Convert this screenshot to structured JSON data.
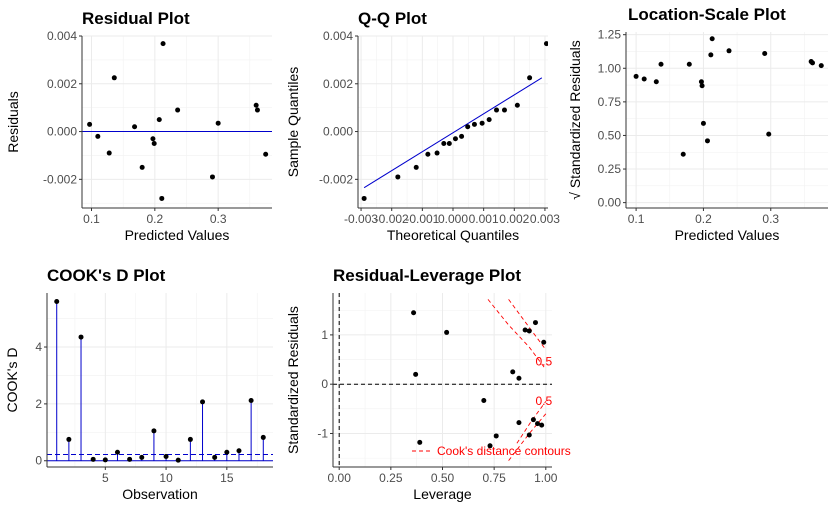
{
  "chart_data": [
    {
      "type": "scatter",
      "title": "Residual Plot",
      "xlabel": "Predicted Values",
      "ylabel": "Residuals",
      "xlim": [
        0.085,
        0.385
      ],
      "ylim": [
        -0.0032,
        0.004
      ],
      "xticks": [
        0.1,
        0.2,
        0.3
      ],
      "xtick_labels": [
        "0.1",
        "0.2",
        "0.3"
      ],
      "yticks": [
        -0.002,
        0.0,
        0.002,
        0.004
      ],
      "ytick_labels": [
        "-0.002",
        "0.000",
        "0.002",
        "0.004"
      ],
      "grid": true,
      "reference_line": {
        "type": "horizontal",
        "y": 0.0,
        "color": "#0000cc"
      },
      "points": [
        {
          "x": 0.097,
          "y": 0.0003
        },
        {
          "x": 0.11,
          "y": -0.0002
        },
        {
          "x": 0.128,
          "y": -0.0009
        },
        {
          "x": 0.136,
          "y": 0.00225
        },
        {
          "x": 0.168,
          "y": 0.0002
        },
        {
          "x": 0.18,
          "y": -0.0015
        },
        {
          "x": 0.197,
          "y": -0.0003
        },
        {
          "x": 0.199,
          "y": -0.0005
        },
        {
          "x": 0.207,
          "y": 0.0005
        },
        {
          "x": 0.211,
          "y": -0.0028
        },
        {
          "x": 0.213,
          "y": 0.00368
        },
        {
          "x": 0.236,
          "y": 0.0009
        },
        {
          "x": 0.291,
          "y": -0.0019
        },
        {
          "x": 0.3,
          "y": 0.00035
        },
        {
          "x": 0.36,
          "y": 0.0011
        },
        {
          "x": 0.362,
          "y": 0.0009
        },
        {
          "x": 0.375,
          "y": -0.00095
        }
      ]
    },
    {
      "type": "scatter",
      "title": "Q-Q Plot",
      "xlabel": "Theoretical Quantiles",
      "ylabel": "Sample Quantiles",
      "xlim": [
        -0.0031,
        0.0031
      ],
      "ylim": [
        -0.0032,
        0.004
      ],
      "xticks": [
        -0.003,
        -0.002,
        -0.001,
        0.0,
        0.001,
        0.002,
        0.003
      ],
      "xtick_labels": [
        "-0.003",
        "-0.002",
        "-0.001",
        "0.000",
        "0.001",
        "0.002",
        "0.003"
      ],
      "yticks": [
        -0.002,
        0.0,
        0.002,
        0.004
      ],
      "ytick_labels": [
        "-0.002",
        "0.000",
        "0.002",
        "0.004"
      ],
      "grid": true,
      "reference_line": {
        "type": "segment",
        "x1": -0.0029,
        "y1": -0.00235,
        "x2": 0.0029,
        "y2": 0.00225,
        "color": "#0000cc"
      },
      "points": [
        {
          "x": -0.0029,
          "y": -0.0028
        },
        {
          "x": -0.0018,
          "y": -0.0019
        },
        {
          "x": -0.0012,
          "y": -0.0015
        },
        {
          "x": -0.00082,
          "y": -0.00095
        },
        {
          "x": -0.00052,
          "y": -0.0009
        },
        {
          "x": -0.0003,
          "y": -0.0005
        },
        {
          "x": -0.00012,
          "y": -0.0005
        },
        {
          "x": 8e-05,
          "y": -0.0003
        },
        {
          "x": 0.00028,
          "y": -0.0002
        },
        {
          "x": 0.00048,
          "y": 0.0002
        },
        {
          "x": 0.0007,
          "y": 0.0003
        },
        {
          "x": 0.00095,
          "y": 0.00035
        },
        {
          "x": 0.00118,
          "y": 0.0005
        },
        {
          "x": 0.00142,
          "y": 0.0009
        },
        {
          "x": 0.00168,
          "y": 0.0009
        },
        {
          "x": 0.0021,
          "y": 0.0011
        },
        {
          "x": 0.0025,
          "y": 0.00225
        },
        {
          "x": 0.00305,
          "y": 0.00368
        }
      ]
    },
    {
      "type": "scatter",
      "title": "Location-Scale Plot",
      "xlabel": "Predicted Values",
      "ylabel": "√ Standardized Residuals",
      "xlim": [
        0.085,
        0.385
      ],
      "ylim": [
        -0.04,
        1.27
      ],
      "xticks": [
        0.1,
        0.2,
        0.3
      ],
      "xtick_labels": [
        "0.1",
        "0.2",
        "0.3"
      ],
      "yticks": [
        0.0,
        0.25,
        0.5,
        0.75,
        1.0,
        1.25
      ],
      "ytick_labels": [
        "0.00",
        "0.25",
        "0.50",
        "0.75",
        "1.00",
        "1.25"
      ],
      "grid": true,
      "points": [
        {
          "x": 0.1,
          "y": 0.94
        },
        {
          "x": 0.112,
          "y": 0.92
        },
        {
          "x": 0.13,
          "y": 0.9
        },
        {
          "x": 0.137,
          "y": 1.03
        },
        {
          "x": 0.17,
          "y": 0.36
        },
        {
          "x": 0.179,
          "y": 1.03
        },
        {
          "x": 0.197,
          "y": 0.9
        },
        {
          "x": 0.198,
          "y": 0.87
        },
        {
          "x": 0.2,
          "y": 0.59
        },
        {
          "x": 0.206,
          "y": 0.46
        },
        {
          "x": 0.211,
          "y": 1.1
        },
        {
          "x": 0.213,
          "y": 1.22
        },
        {
          "x": 0.238,
          "y": 1.13
        },
        {
          "x": 0.291,
          "y": 1.11
        },
        {
          "x": 0.297,
          "y": 0.51
        },
        {
          "x": 0.36,
          "y": 1.05
        },
        {
          "x": 0.362,
          "y": 1.04
        },
        {
          "x": 0.375,
          "y": 1.02
        }
      ]
    },
    {
      "type": "stem",
      "title": "COOK's D Plot",
      "xlabel": "Observation",
      "ylabel": "COOK's D",
      "xlim": [
        0.2,
        18.8
      ],
      "ylim": [
        -0.22,
        5.9
      ],
      "xticks": [
        5,
        10,
        15
      ],
      "xtick_labels": [
        "5",
        "10",
        "15"
      ],
      "yticks": [
        0,
        2,
        4
      ],
      "ytick_labels": [
        "0",
        "2",
        "4"
      ],
      "grid": true,
      "reference_lines": [
        {
          "type": "horizontal",
          "y": 0.0,
          "style": "solid",
          "color": "#0000cc"
        },
        {
          "type": "horizontal",
          "y": 0.22,
          "style": "dashed",
          "color": "#0000cc"
        }
      ],
      "x": [
        1,
        2,
        3,
        4,
        5,
        6,
        7,
        8,
        9,
        10,
        11,
        12,
        13,
        14,
        15,
        16,
        17,
        18
      ],
      "values": [
        5.6,
        0.75,
        4.35,
        0.05,
        0.03,
        0.3,
        0.05,
        0.12,
        1.05,
        0.15,
        0.02,
        0.75,
        2.07,
        0.12,
        0.3,
        0.35,
        2.12,
        0.82
      ]
    },
    {
      "type": "scatter",
      "title": "Residual-Leverage Plot",
      "xlabel": "Leverage",
      "ylabel": "Standardized Residuals",
      "xlim": [
        -0.03,
        1.03
      ],
      "ylim": [
        -1.68,
        1.85
      ],
      "xticks": [
        0.0,
        0.25,
        0.5,
        0.75,
        1.0
      ],
      "xtick_labels": [
        "0.00",
        "0.25",
        "0.50",
        "0.75",
        "1.00"
      ],
      "yticks": [
        -1,
        0,
        1
      ],
      "ytick_labels": [
        "-1",
        "0",
        "1"
      ],
      "grid": true,
      "points": [
        {
          "x": 0.36,
          "y": 1.45
        },
        {
          "x": 0.37,
          "y": 0.2
        },
        {
          "x": 0.39,
          "y": -1.18
        },
        {
          "x": 0.52,
          "y": 1.05
        },
        {
          "x": 0.7,
          "y": -0.33
        },
        {
          "x": 0.73,
          "y": -1.25
        },
        {
          "x": 0.76,
          "y": -1.05
        },
        {
          "x": 0.84,
          "y": 0.25
        },
        {
          "x": 0.87,
          "y": 0.12
        },
        {
          "x": 0.87,
          "y": -0.78
        },
        {
          "x": 0.9,
          "y": 1.1
        },
        {
          "x": 0.92,
          "y": 1.08
        },
        {
          "x": 0.92,
          "y": -1.03
        },
        {
          "x": 0.94,
          "y": -0.72
        },
        {
          "x": 0.95,
          "y": 1.25
        },
        {
          "x": 0.96,
          "y": -0.8
        },
        {
          "x": 0.98,
          "y": -0.83
        },
        {
          "x": 0.99,
          "y": 0.85
        }
      ],
      "annotations": [
        {
          "text": "0.5",
          "x": 0.95,
          "y": 0.38,
          "color": "#ff0000"
        },
        {
          "text": "0.5",
          "x": 0.95,
          "y": -0.42,
          "color": "#ff0000"
        }
      ],
      "legend": {
        "label": "Cook's distance contours",
        "style": "dashed",
        "color": "#ff0000",
        "placement": "bottom-left"
      }
    }
  ]
}
